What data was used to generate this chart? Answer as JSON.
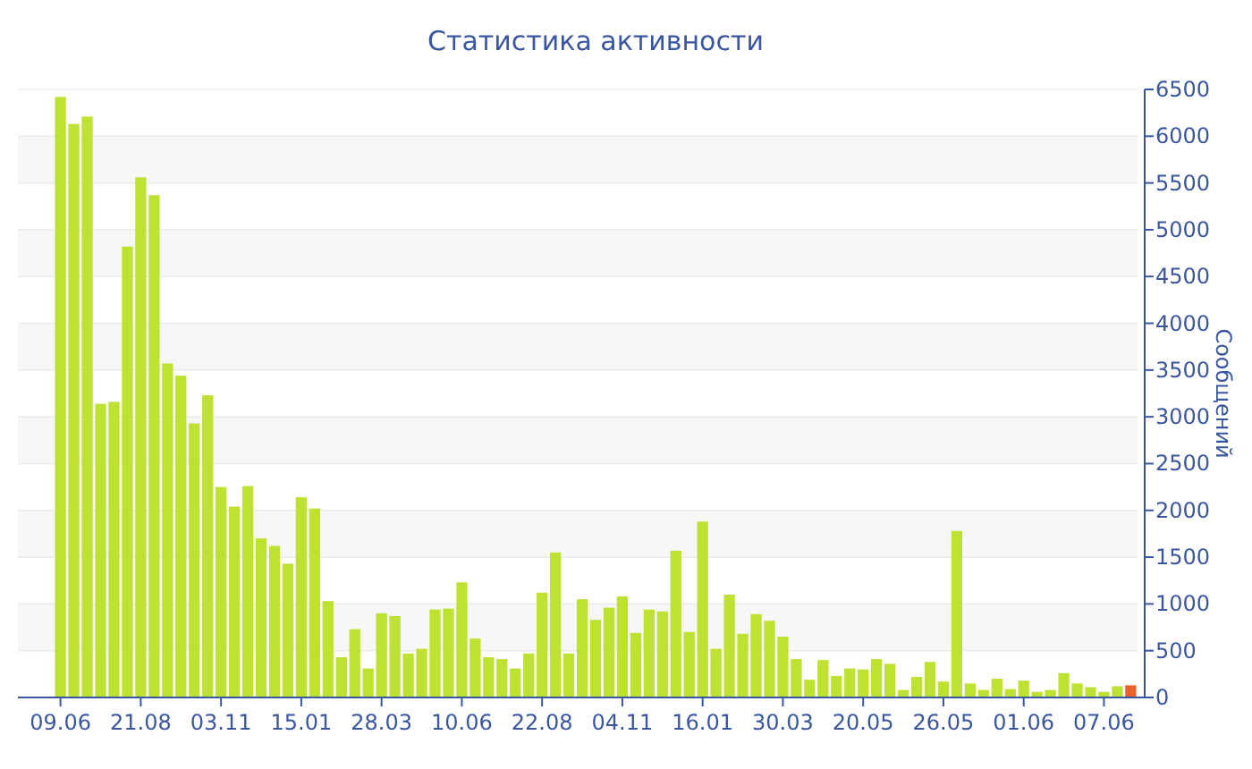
{
  "chart_data": {
    "type": "bar",
    "title": "Статистика активности",
    "ylabel": "Сообщений",
    "categories": [
      "09.06",
      null,
      null,
      null,
      null,
      null,
      "21.08",
      null,
      null,
      null,
      null,
      null,
      "03.11",
      null,
      null,
      null,
      null,
      null,
      "15.01",
      null,
      null,
      null,
      null,
      null,
      "28.03",
      null,
      null,
      null,
      null,
      null,
      "10.06",
      null,
      null,
      null,
      null,
      null,
      "22.08",
      null,
      null,
      null,
      null,
      null,
      "04.11",
      null,
      null,
      null,
      null,
      null,
      "16.01",
      null,
      null,
      null,
      null,
      null,
      "30.03",
      null,
      null,
      null,
      null,
      null,
      "20.05",
      null,
      null,
      null,
      null,
      null,
      "26.05",
      null,
      null,
      null,
      null,
      null,
      "01.06",
      null,
      null,
      null,
      null,
      null,
      "07.06",
      null,
      null
    ],
    "values": [
      6420,
      6130,
      6210,
      3140,
      3160,
      4820,
      5560,
      5370,
      3570,
      3440,
      2930,
      3230,
      2250,
      2040,
      2260,
      1700,
      1620,
      1430,
      2140,
      2020,
      1030,
      430,
      730,
      310,
      900,
      870,
      470,
      520,
      940,
      950,
      1230,
      630,
      430,
      410,
      310,
      470,
      1120,
      1550,
      470,
      1050,
      830,
      960,
      1080,
      690,
      940,
      920,
      1570,
      700,
      1880,
      520,
      1100,
      680,
      890,
      820,
      650,
      410,
      190,
      400,
      230,
      310,
      300,
      410,
      360,
      80,
      220,
      380,
      170,
      1780,
      150,
      80,
      200,
      90,
      180,
      60,
      80,
      260,
      150,
      110,
      60,
      120,
      130
    ],
    "colors": [
      "#bde231",
      "#bde231",
      "#bde231",
      "#bde231",
      "#bde231",
      "#bde231",
      "#bde231",
      "#bde231",
      "#bde231",
      "#bde231",
      "#bde231",
      "#bde231",
      "#bde231",
      "#bde231",
      "#bde231",
      "#bde231",
      "#bde231",
      "#bde231",
      "#bde231",
      "#bde231",
      "#bde231",
      "#bde231",
      "#bde231",
      "#bde231",
      "#bde231",
      "#bde231",
      "#bde231",
      "#bde231",
      "#bde231",
      "#bde231",
      "#bde231",
      "#bde231",
      "#bde231",
      "#bde231",
      "#bde231",
      "#bde231",
      "#bde231",
      "#bde231",
      "#bde231",
      "#bde231",
      "#bde231",
      "#bde231",
      "#bde231",
      "#bde231",
      "#bde231",
      "#bde231",
      "#bde231",
      "#bde231",
      "#bde231",
      "#bde231",
      "#bde231",
      "#bde231",
      "#bde231",
      "#bde231",
      "#bde231",
      "#bde231",
      "#bde231",
      "#bde231",
      "#bde231",
      "#bde231",
      "#bde231",
      "#bde231",
      "#bde231",
      "#bde231",
      "#bde231",
      "#bde231",
      "#bde231",
      "#bde231",
      "#bde231",
      "#bde231",
      "#bde231",
      "#bde231",
      "#bde231",
      "#bde231",
      "#bde231",
      "#bde231",
      "#bde231",
      "#bde231",
      "#bde231",
      "#bde231",
      "#e8632a"
    ],
    "ylim": [
      0,
      6500
    ],
    "yticks": [
      0,
      500,
      1000,
      1500,
      2000,
      2500,
      3000,
      3500,
      4000,
      4500,
      5000,
      5500,
      6000,
      6500
    ],
    "grid": "y"
  }
}
